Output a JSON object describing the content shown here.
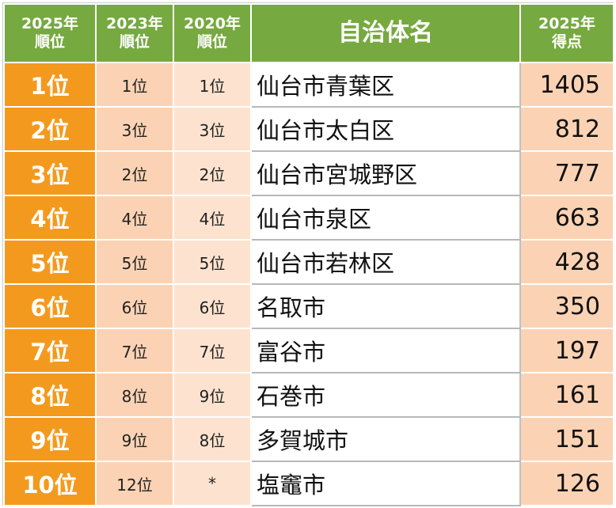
{
  "headers": {
    "rank_2025": [
      "2025年",
      "順位"
    ],
    "rank_2023": [
      "2023年",
      "順位"
    ],
    "rank_2020": [
      "2020年",
      "順位"
    ],
    "name": "自治体名",
    "score_2025": [
      "2025年",
      "得点"
    ]
  },
  "rows": [
    {
      "rank_2025": "1位",
      "rank_2023": "1位",
      "rank_2020": "1位",
      "name": "仙台市青葉区",
      "score": "1405"
    },
    {
      "rank_2025": "2位",
      "rank_2023": "3位",
      "rank_2020": "3位",
      "name": "仙台市太白区",
      "score": "812"
    },
    {
      "rank_2025": "3位",
      "rank_2023": "2位",
      "rank_2020": "2位",
      "name": "仙台市宮城野区",
      "score": "777"
    },
    {
      "rank_2025": "4位",
      "rank_2023": "4位",
      "rank_2020": "4位",
      "name": "仙台市泉区",
      "score": "663"
    },
    {
      "rank_2025": "5位",
      "rank_2023": "5位",
      "rank_2020": "5位",
      "name": "仙台市若林区",
      "score": "428"
    },
    {
      "rank_2025": "6位",
      "rank_2023": "6位",
      "rank_2020": "6位",
      "name": "名取市",
      "score": "350"
    },
    {
      "rank_2025": "7位",
      "rank_2023": "7位",
      "rank_2020": "7位",
      "name": "富谷市",
      "score": "197"
    },
    {
      "rank_2025": "8位",
      "rank_2023": "8位",
      "rank_2020": "9位",
      "name": "石巻市",
      "score": "161"
    },
    {
      "rank_2025": "9位",
      "rank_2023": "9位",
      "rank_2020": "8位",
      "name": "多賀城市",
      "score": "151"
    },
    {
      "rank_2025": "10位",
      "rank_2023": "12位",
      "rank_2020": "*",
      "name": "塩竈市",
      "score": "126"
    }
  ],
  "colors": {
    "header_green": "#76a940",
    "rank_orange": "#f39a1e",
    "peach": "#fbd3b4",
    "light_peach": "#fde3cf"
  }
}
